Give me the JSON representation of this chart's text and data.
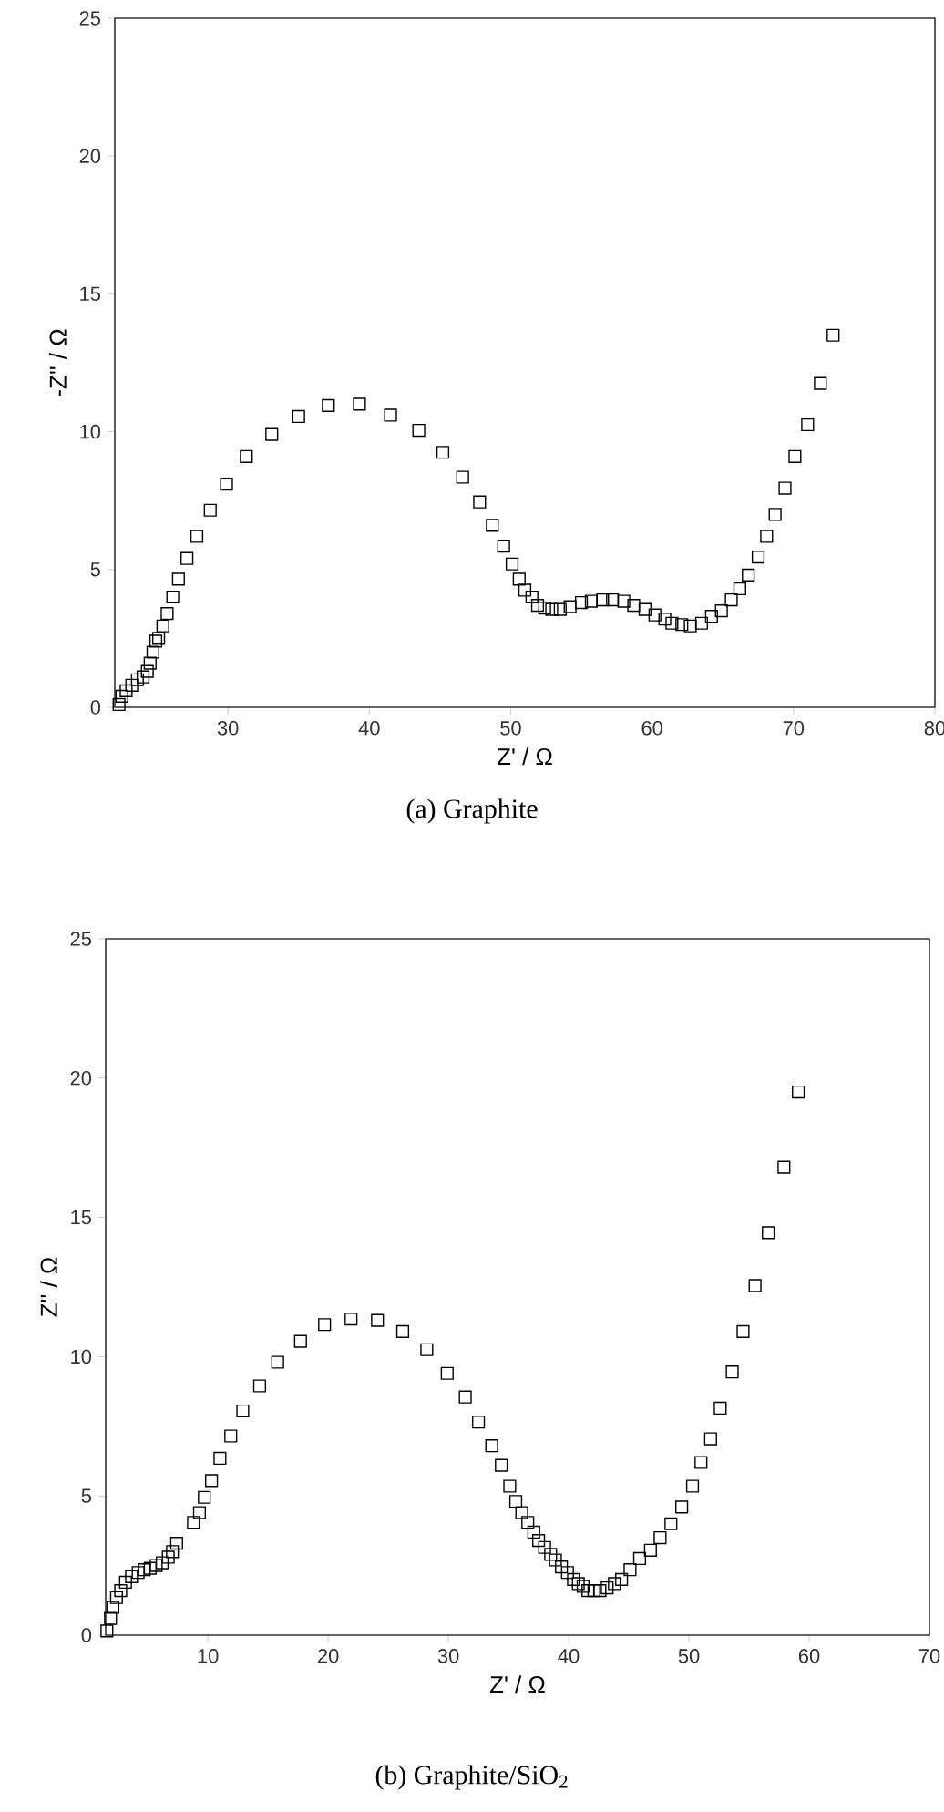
{
  "chart_data": [
    {
      "type": "scatter",
      "title": "(a)  Graphite",
      "xlabel": "Z' / Ω",
      "ylabel": "-Z'' / Ω",
      "xlim": [
        22,
        80
      ],
      "ylim": [
        0,
        25
      ],
      "xticks": [
        30,
        40,
        50,
        60,
        70,
        80
      ],
      "yticks": [
        0,
        5,
        10,
        15,
        20,
        25
      ],
      "marker": "square",
      "series": [
        {
          "color": "#000000",
          "x": [
            22.3,
            22.5,
            22.8,
            23.2,
            23.6,
            24.0,
            24.3,
            24.5,
            24.7,
            24.9,
            25.1,
            25.4,
            25.7,
            26.1,
            26.5,
            27.1,
            27.8,
            28.75,
            29.9,
            31.3,
            33.1,
            35.0,
            37.1,
            39.3,
            41.5,
            43.5,
            45.2,
            46.6,
            47.8,
            48.7,
            49.5,
            50.1,
            50.6,
            51.0,
            51.5,
            51.9,
            52.4,
            52.9,
            53.5,
            54.2,
            55.0,
            55.7,
            56.5,
            57.2,
            58.0,
            58.7,
            59.5,
            60.2,
            60.9,
            61.4,
            62.1,
            62.7,
            63.5,
            64.2,
            64.9,
            65.6,
            66.2,
            66.8,
            67.5,
            68.1,
            68.7,
            69.4,
            70.1,
            71.0,
            71.9,
            72.8
          ],
          "values": [
            0.1,
            0.4,
            0.6,
            0.8,
            1.0,
            1.1,
            1.3,
            1.6,
            2.0,
            2.4,
            2.5,
            2.95,
            3.4,
            4.0,
            4.65,
            5.4,
            6.2,
            7.15,
            8.1,
            9.1,
            9.9,
            10.55,
            10.95,
            11.0,
            10.6,
            10.05,
            9.25,
            8.35,
            7.45,
            6.6,
            5.85,
            5.2,
            4.65,
            4.25,
            4.0,
            3.7,
            3.6,
            3.55,
            3.55,
            3.65,
            3.8,
            3.85,
            3.9,
            3.9,
            3.85,
            3.7,
            3.55,
            3.35,
            3.2,
            3.05,
            3.0,
            2.95,
            3.05,
            3.3,
            3.5,
            3.9,
            4.3,
            4.8,
            5.45,
            6.2,
            7.0,
            7.95,
            9.1,
            10.25,
            11.75,
            13.5
          ]
        }
      ]
    },
    {
      "type": "scatter",
      "title": "(b)  Graphite/SiO$_{2}$",
      "xlabel": "Z' / Ω",
      "ylabel": "Z'' / Ω",
      "xlim": [
        1.5,
        70
      ],
      "ylim": [
        0,
        25
      ],
      "xticks": [
        10,
        20,
        30,
        40,
        50,
        60,
        70
      ],
      "yticks": [
        0,
        5,
        10,
        15,
        20,
        25
      ],
      "marker": "square",
      "series": [
        {
          "color": "#000000",
          "x": [
            1.6,
            1.9,
            2.1,
            2.4,
            2.75,
            3.15,
            3.65,
            4.2,
            4.7,
            5.2,
            5.7,
            6.2,
            6.7,
            7.05,
            7.4,
            8.8,
            9.3,
            9.7,
            10.3,
            11.0,
            11.9,
            12.9,
            14.3,
            15.8,
            17.7,
            19.7,
            21.9,
            24.1,
            26.2,
            28.2,
            29.9,
            31.4,
            32.5,
            33.6,
            34.4,
            35.1,
            35.6,
            36.1,
            36.6,
            37.1,
            37.5,
            38.0,
            38.5,
            38.9,
            39.4,
            39.9,
            40.4,
            40.8,
            41.2,
            41.6,
            42.1,
            42.6,
            43.2,
            43.8,
            44.4,
            45.1,
            45.9,
            46.8,
            47.6,
            48.5,
            49.4,
            50.3,
            51.0,
            51.8,
            52.6,
            53.6,
            54.5,
            55.5,
            56.6,
            57.9,
            59.1
          ],
          "values": [
            0.15,
            0.6,
            1.0,
            1.35,
            1.6,
            1.9,
            2.1,
            2.25,
            2.35,
            2.4,
            2.5,
            2.6,
            2.8,
            3.0,
            3.3,
            4.05,
            4.4,
            4.95,
            5.55,
            6.35,
            7.15,
            8.05,
            8.95,
            9.8,
            10.55,
            11.15,
            11.35,
            11.3,
            10.9,
            10.25,
            9.4,
            8.55,
            7.65,
            6.8,
            6.1,
            5.35,
            4.8,
            4.4,
            4.05,
            3.7,
            3.4,
            3.15,
            2.9,
            2.7,
            2.45,
            2.25,
            2.0,
            1.85,
            1.75,
            1.6,
            1.6,
            1.6,
            1.7,
            1.85,
            2.0,
            2.35,
            2.75,
            3.05,
            3.5,
            4.0,
            4.6,
            5.35,
            6.2,
            7.05,
            8.15,
            9.45,
            10.9,
            12.55,
            14.45,
            16.8,
            19.5
          ]
        }
      ]
    }
  ]
}
